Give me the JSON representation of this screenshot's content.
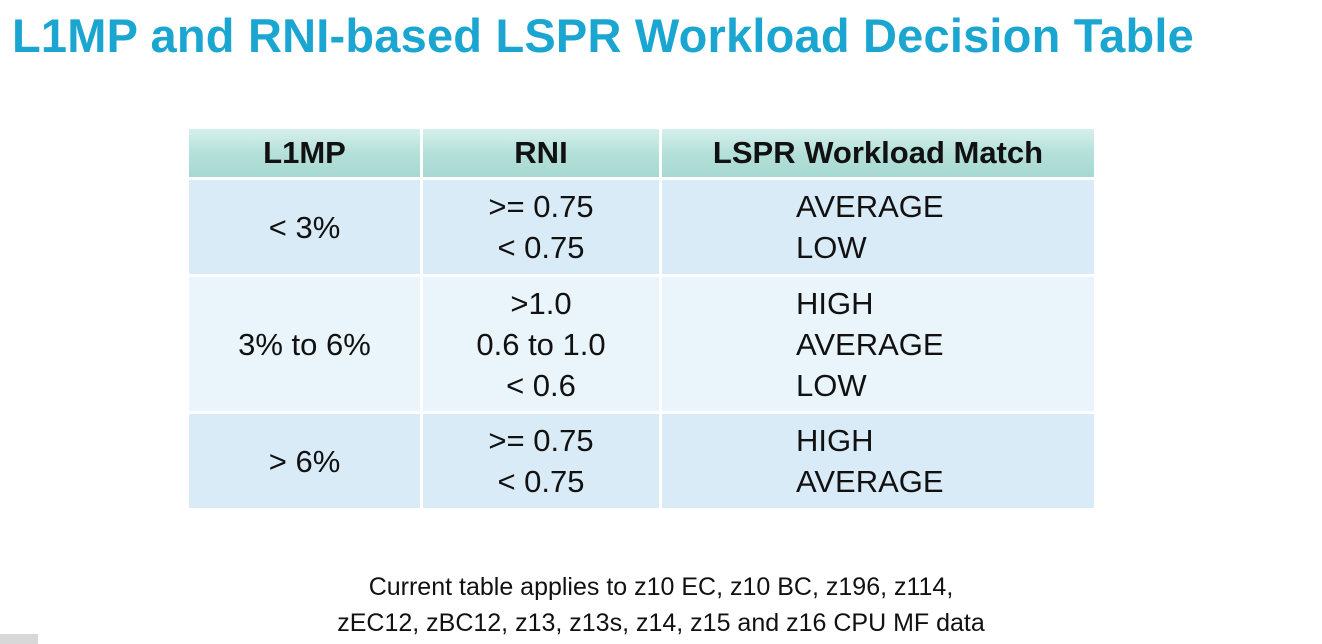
{
  "title": "L1MP and RNI-based LSPR Workload Decision Table",
  "table": {
    "headers": [
      "L1MP",
      "RNI",
      "LSPR Workload Match"
    ],
    "rows": [
      {
        "l1mp": "< 3%",
        "rni": [
          ">= 0.75",
          "< 0.75"
        ],
        "match": [
          "AVERAGE",
          "LOW"
        ]
      },
      {
        "l1mp": "3% to 6%",
        "rni": [
          ">1.0",
          "0.6 to 1.0",
          "< 0.6"
        ],
        "match": [
          "HIGH",
          "AVERAGE",
          "LOW"
        ]
      },
      {
        "l1mp": "> 6%",
        "rni": [
          ">= 0.75",
          "< 0.75"
        ],
        "match": [
          "HIGH",
          "AVERAGE"
        ]
      }
    ]
  },
  "footer": {
    "line1": "Current table applies to z10 EC, z10 BC, z196, z114,",
    "line2": "zEC12, zBC12, z13, z13s, z14, z15 and z16 CPU MF data"
  },
  "colors": {
    "title": "#1aa6d0",
    "header_bg": "#b5e0da",
    "row_dark": "#d9ebf7",
    "row_light": "#eaf4fb"
  }
}
